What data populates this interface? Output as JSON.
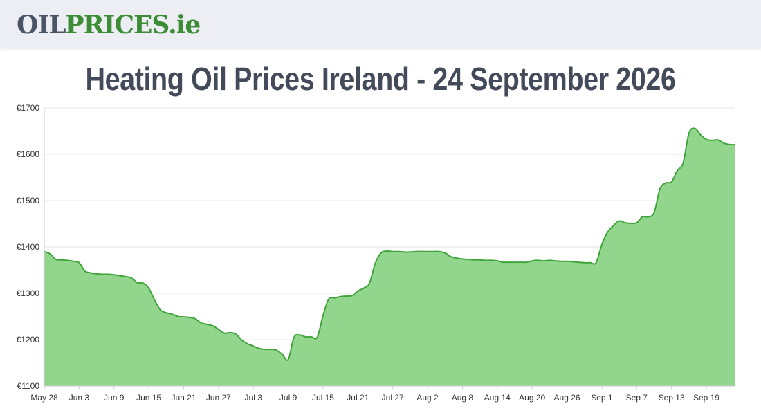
{
  "header": {
    "logo_oil": "OIL",
    "logo_prices": "PRICES",
    "logo_tld": ".ie"
  },
  "page": {
    "title": "Heating Oil Prices Ireland - 24 September 2026"
  },
  "colors": {
    "line": "#3fa43a",
    "fill": "#92d68e",
    "grid": "#e6e6e6",
    "axis": "#cccccc",
    "header_bg": "#eceef4"
  },
  "chart_data": {
    "type": "area",
    "title": "Heating Oil Prices Ireland - 24 September 2026",
    "xlabel": "",
    "ylabel": "",
    "ylim": [
      1100,
      1700
    ],
    "yticks": [
      1100,
      1200,
      1300,
      1400,
      1500,
      1600,
      1700
    ],
    "ytick_labels": [
      "€1100",
      "€1200",
      "€1300",
      "€1400",
      "€1500",
      "€1600",
      "€1700"
    ],
    "xlim": [
      "2026-05-28",
      "2026-09-24"
    ],
    "xtick_labels": [
      "May 28",
      "Jun 3",
      "Jun 9",
      "Jun 15",
      "Jun 21",
      "Jun 27",
      "Jul 3",
      "Jul 9",
      "Jul 15",
      "Jul 21",
      "Jul 27",
      "Aug 2",
      "Aug 8",
      "Aug 14",
      "Aug 20",
      "Aug 26",
      "Sep 1",
      "Sep 7",
      "Sep 13",
      "Sep 19"
    ],
    "grid": true,
    "legend": "none",
    "series": [
      {
        "x": [
          "2026-05-28",
          "2026-05-29",
          "2026-05-30",
          "2026-05-31",
          "2026-06-01",
          "2026-06-02",
          "2026-06-03",
          "2026-06-04",
          "2026-06-05",
          "2026-06-06",
          "2026-06-07",
          "2026-06-08",
          "2026-06-09",
          "2026-06-10",
          "2026-06-11",
          "2026-06-12",
          "2026-06-13",
          "2026-06-14",
          "2026-06-15",
          "2026-06-16",
          "2026-06-17",
          "2026-06-18",
          "2026-06-19",
          "2026-06-20",
          "2026-06-21",
          "2026-06-22",
          "2026-06-23",
          "2026-06-24",
          "2026-06-25",
          "2026-06-26",
          "2026-06-27",
          "2026-06-28",
          "2026-06-29",
          "2026-06-30",
          "2026-07-01",
          "2026-07-02",
          "2026-07-03",
          "2026-07-04",
          "2026-07-05",
          "2026-07-06",
          "2026-07-07",
          "2026-07-08",
          "2026-07-09",
          "2026-07-10",
          "2026-07-11",
          "2026-07-12",
          "2026-07-13",
          "2026-07-14",
          "2026-07-15",
          "2026-07-16",
          "2026-07-17",
          "2026-07-18",
          "2026-07-19",
          "2026-07-20",
          "2026-07-21",
          "2026-07-22",
          "2026-07-23",
          "2026-07-24",
          "2026-07-25",
          "2026-07-26",
          "2026-07-27",
          "2026-07-28",
          "2026-07-29",
          "2026-07-30",
          "2026-07-31",
          "2026-08-01",
          "2026-08-02",
          "2026-08-03",
          "2026-08-04",
          "2026-08-05",
          "2026-08-06",
          "2026-08-07",
          "2026-08-08",
          "2026-08-09",
          "2026-08-10",
          "2026-08-11",
          "2026-08-12",
          "2026-08-13",
          "2026-08-14",
          "2026-08-15",
          "2026-08-16",
          "2026-08-17",
          "2026-08-18",
          "2026-08-19",
          "2026-08-20",
          "2026-08-21",
          "2026-08-22",
          "2026-08-23",
          "2026-08-24",
          "2026-08-25",
          "2026-08-26",
          "2026-08-27",
          "2026-08-28",
          "2026-08-29",
          "2026-08-30",
          "2026-08-31",
          "2026-09-01",
          "2026-09-02",
          "2026-09-03",
          "2026-09-04",
          "2026-09-05",
          "2026-09-06",
          "2026-09-07",
          "2026-09-08",
          "2026-09-09",
          "2026-09-10",
          "2026-09-11",
          "2026-09-12",
          "2026-09-13",
          "2026-09-14",
          "2026-09-15",
          "2026-09-16",
          "2026-09-17",
          "2026-09-18",
          "2026-09-19",
          "2026-09-20",
          "2026-09-21",
          "2026-09-22",
          "2026-09-23",
          "2026-09-24"
        ],
        "y": [
          1390,
          1385,
          1373,
          1372,
          1371,
          1369,
          1366,
          1348,
          1344,
          1342,
          1341,
          1341,
          1340,
          1338,
          1336,
          1333,
          1323,
          1322,
          1311,
          1285,
          1264,
          1258,
          1255,
          1250,
          1249,
          1248,
          1245,
          1236,
          1233,
          1230,
          1222,
          1214,
          1215,
          1212,
          1199,
          1191,
          1186,
          1181,
          1179,
          1179,
          1177,
          1168,
          1157,
          1205,
          1210,
          1206,
          1206,
          1205,
          1252,
          1288,
          1290,
          1293,
          1294,
          1295,
          1305,
          1311,
          1322,
          1365,
          1387,
          1391,
          1390,
          1390,
          1389,
          1389,
          1390,
          1390,
          1390,
          1390,
          1390,
          1387,
          1379,
          1376,
          1374,
          1373,
          1372,
          1372,
          1371,
          1371,
          1370,
          1367,
          1367,
          1367,
          1367,
          1367,
          1370,
          1371,
          1370,
          1371,
          1370,
          1369,
          1369,
          1368,
          1367,
          1366,
          1366,
          1366,
          1405,
          1432,
          1446,
          1456,
          1452,
          1451,
          1452,
          1465,
          1465,
          1474,
          1525,
          1538,
          1540,
          1565,
          1581,
          1645,
          1656,
          1642,
          1632,
          1630,
          1631,
          1624,
          1621,
          1621
        ]
      }
    ]
  }
}
